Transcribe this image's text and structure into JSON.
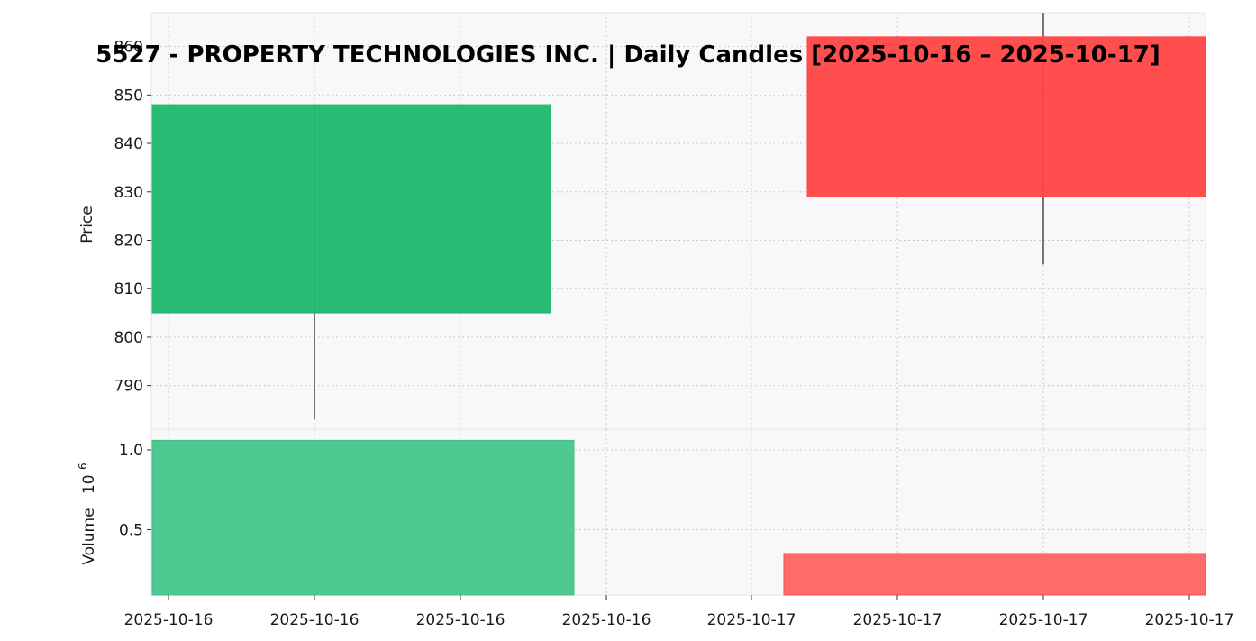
{
  "chart_data": {
    "type": "candlestick",
    "title": "5527 - PROPERTY TECHNOLOGIES INC. | Daily Candles [2025-10-16 – 2025-10-17]",
    "price_panel": {
      "ylabel": "Price",
      "yticks": [
        790,
        800,
        810,
        820,
        830,
        840,
        850,
        860
      ],
      "ylim": [
        781,
        867
      ],
      "grid": true
    },
    "volume_panel": {
      "ylabel": "Volume",
      "ylabel_multiplier": "10",
      "ylabel_exponent": "6",
      "yticks": [
        0.5,
        1.0
      ],
      "ytick_labels": [
        "0.5",
        "1.0"
      ],
      "ylim": [
        0.09,
        1.13
      ],
      "grid": true
    },
    "x_tick_labels": [
      "2025-10-16",
      "2025-10-16",
      "2025-10-16",
      "2025-10-16",
      "2025-10-17",
      "2025-10-17",
      "2025-10-17",
      "2025-10-17"
    ],
    "candles": [
      {
        "date": "2025-10-16",
        "open": 805,
        "high": 848,
        "low": 783,
        "close": 848,
        "volume": 1.06,
        "direction": "up"
      },
      {
        "date": "2025-10-17",
        "open": 862,
        "high": 867,
        "low": 815,
        "close": 829,
        "volume": 0.35,
        "direction": "down"
      }
    ],
    "colors": {
      "up": "#1cb870",
      "down": "#ff4444",
      "up_volume": "#4cc890",
      "down_volume": "#ff6b6b",
      "wick": "#555555",
      "panel_bg": "#f8f8f8"
    }
  }
}
